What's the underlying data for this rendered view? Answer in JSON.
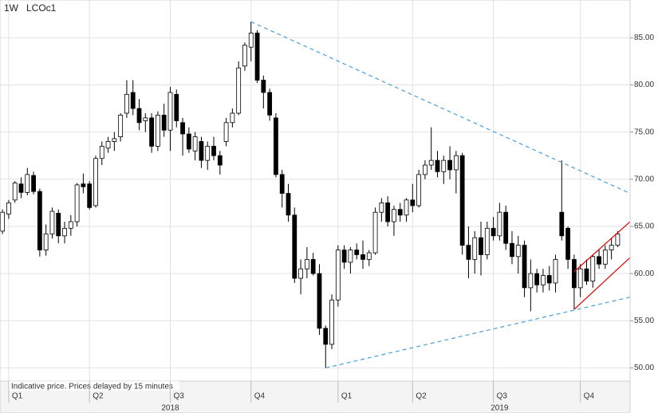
{
  "chart_data": {
    "type": "candlestick",
    "interval": "1W",
    "symbol": "LCOc1",
    "note": "Indicative price. Prices delayed by 15 minutes",
    "up_color": "#ffffff",
    "down_color": "#000000",
    "grid": true,
    "x": [
      0,
      1,
      2,
      3,
      4,
      5,
      6,
      7,
      8,
      9,
      10,
      11,
      12,
      13,
      14,
      15,
      16,
      17,
      18,
      19,
      20,
      21,
      22,
      23,
      24,
      25,
      26,
      27,
      28,
      29,
      30,
      31,
      32,
      33,
      34,
      35,
      36,
      37,
      38,
      39,
      40,
      41,
      42,
      43,
      44,
      45,
      46,
      47,
      48,
      49,
      50,
      51,
      52,
      53,
      54,
      55,
      56,
      57,
      58,
      59,
      60,
      61,
      62,
      63,
      64,
      65,
      66,
      67,
      68,
      69,
      70,
      71,
      72,
      73,
      74,
      75,
      76,
      77,
      78,
      79,
      80,
      81,
      82,
      83,
      84,
      85,
      86,
      87,
      88,
      89,
      90,
      91,
      92,
      93,
      94,
      95,
      96,
      97,
      98,
      99
    ],
    "open": [
      64.5,
      66.3,
      67.8,
      69.5,
      68.6,
      70.4,
      68.7,
      62.5,
      64.2,
      66.4,
      64.0,
      64.8,
      65.5,
      69.5,
      69.5,
      67.2,
      72.2,
      73.3,
      74.0,
      74.5,
      77.0,
      79.2,
      77.5,
      76.2,
      76.5,
      73.5,
      76.8,
      75.2,
      79.0,
      76.0,
      74.8,
      73.0,
      74.0,
      72.0,
      73.5,
      72.5,
      74.0,
      76.0,
      77.0,
      82.0,
      84.0,
      85.5,
      80.5,
      79.2,
      76.5,
      70.5,
      68.5,
      66.2,
      59.5,
      60.5,
      61.5,
      60.0,
      54.2,
      52.5,
      57.2,
      62.5,
      61.2,
      62.5,
      62.0,
      61.5,
      62.2,
      66.5,
      67.5,
      65.5,
      66.8,
      66.2,
      67.8,
      67.2,
      70.5,
      71.5,
      72.0,
      70.8,
      72.0,
      71.0,
      72.5,
      63.0,
      61.5,
      63.8,
      62.0,
      64.8,
      64.0,
      66.5,
      63.2,
      61.8,
      63.0,
      58.5,
      60.0,
      58.8,
      59.8,
      59.0,
      66.5,
      64.8,
      61.5,
      58.5,
      60.5,
      59.2,
      61.8,
      61.0,
      62.5,
      63.0
    ],
    "high": [
      66.8,
      67.8,
      69.8,
      70.2,
      71.2,
      70.8,
      69.0,
      65.2,
      67.0,
      66.8,
      65.5,
      66.2,
      69.6,
      70.6,
      69.8,
      72.5,
      74.0,
      74.5,
      75.0,
      77.0,
      80.5,
      80.5,
      78.5,
      77.0,
      77.0,
      77.2,
      78.0,
      79.8,
      79.5,
      76.5,
      75.5,
      75.0,
      74.5,
      74.0,
      74.5,
      73.0,
      76.5,
      77.5,
      82.5,
      84.5,
      86.7,
      85.8,
      81.0,
      79.6,
      77.0,
      71.0,
      69.5,
      67.0,
      61.5,
      62.8,
      62.2,
      61.0,
      54.5,
      57.8,
      63.0,
      63.0,
      62.8,
      63.2,
      63.5,
      62.5,
      67.0,
      68.0,
      68.2,
      67.2,
      67.5,
      68.0,
      69.5,
      71.0,
      72.0,
      75.5,
      73.0,
      72.5,
      73.5,
      73.0,
      72.8,
      65.0,
      64.5,
      65.5,
      65.5,
      66.0,
      67.5,
      67.2,
      64.5,
      64.0,
      63.5,
      61.5,
      60.5,
      60.5,
      60.8,
      62.0,
      72.0,
      65.0,
      62.0,
      61.0,
      61.5,
      62.0,
      62.5,
      63.0,
      63.8,
      64.5
    ],
    "low": [
      64.2,
      65.8,
      67.5,
      68.0,
      68.3,
      68.4,
      61.8,
      61.9,
      63.7,
      63.2,
      63.2,
      64.0,
      65.0,
      68.5,
      66.8,
      67.0,
      71.5,
      72.8,
      73.0,
      74.0,
      76.5,
      76.8,
      75.2,
      75.0,
      72.8,
      73.0,
      74.5,
      73.0,
      75.5,
      72.5,
      72.8,
      72.0,
      71.2,
      71.0,
      72.0,
      70.5,
      73.5,
      75.5,
      76.8,
      81.5,
      82.5,
      80.2,
      77.5,
      76.2,
      70.2,
      67.0,
      65.5,
      59.0,
      57.8,
      59.5,
      59.8,
      53.5,
      50.0,
      52.0,
      56.5,
      60.5,
      60.0,
      61.5,
      60.5,
      60.8,
      62.0,
      65.5,
      65.0,
      64.0,
      65.5,
      65.5,
      66.5,
      67.0,
      70.0,
      71.0,
      70.2,
      69.5,
      70.0,
      68.5,
      62.0,
      59.5,
      60.0,
      59.8,
      61.5,
      63.5,
      63.5,
      62.5,
      61.0,
      60.0,
      57.5,
      56.0,
      58.0,
      58.0,
      58.2,
      58.0,
      63.5,
      60.5,
      56.2,
      57.5,
      58.8,
      58.5,
      60.5,
      60.5,
      61.5,
      62.8
    ],
    "close": [
      66.5,
      67.5,
      69.6,
      68.6,
      70.5,
      68.7,
      62.5,
      64.2,
      66.6,
      64.0,
      64.8,
      65.5,
      69.4,
      69.2,
      67.0,
      72.2,
      73.5,
      74.0,
      74.3,
      76.8,
      79.0,
      77.5,
      76.0,
      76.5,
      73.5,
      76.8,
      75.2,
      79.2,
      76.2,
      74.8,
      73.2,
      74.5,
      72.0,
      73.5,
      72.5,
      71.5,
      76.0,
      77.0,
      81.8,
      84.2,
      85.5,
      80.5,
      79.2,
      76.8,
      70.5,
      68.5,
      66.2,
      59.5,
      60.5,
      61.5,
      60.0,
      54.2,
      52.5,
      57.2,
      62.5,
      61.2,
      62.5,
      62.0,
      61.5,
      62.2,
      66.5,
      67.5,
      65.5,
      66.8,
      66.2,
      67.8,
      67.2,
      70.5,
      71.5,
      72.0,
      70.8,
      72.0,
      71.0,
      72.5,
      63.0,
      61.5,
      63.8,
      62.0,
      64.8,
      64.0,
      66.5,
      63.2,
      61.8,
      63.0,
      58.5,
      60.0,
      58.8,
      59.8,
      59.0,
      61.5,
      64.0,
      61.5,
      58.5,
      60.5,
      59.2,
      61.8,
      61.0,
      62.5,
      63.0,
      64.2
    ],
    "xlim": [
      -0.4,
      101
    ],
    "ylim": [
      48.6,
      89
    ],
    "yticks": [
      {
        "value": 50,
        "label": "50.00"
      },
      {
        "value": 55,
        "label": "55.00"
      },
      {
        "value": 60,
        "label": "60.00"
      },
      {
        "value": 65,
        "label": "65.00"
      },
      {
        "value": 70,
        "label": "70.00"
      },
      {
        "value": 75,
        "label": "75.00"
      },
      {
        "value": 80,
        "label": "80.00"
      },
      {
        "value": 85,
        "label": "85.00"
      }
    ],
    "xticks": [
      {
        "value": 1,
        "label": "Q1"
      },
      {
        "value": 14,
        "label": "Q2"
      },
      {
        "value": 27,
        "label": "Q3"
      },
      {
        "value": 40,
        "label": "Q4"
      },
      {
        "value": 54,
        "label": "Q1"
      },
      {
        "value": 66,
        "label": "Q2"
      },
      {
        "value": 79,
        "label": "Q3"
      },
      {
        "value": 93,
        "label": "Q4"
      }
    ],
    "year_labels": [
      {
        "value": 27,
        "label": "2018"
      },
      {
        "value": 80,
        "label": "2019"
      }
    ],
    "lines": [
      {
        "color": "#4a9fd8",
        "dash": true,
        "points": [
          [
            40,
            86.7
          ],
          [
            101,
            68.5
          ]
        ]
      },
      {
        "color": "#4a9fd8",
        "dash": true,
        "points": [
          [
            52,
            50.0
          ],
          [
            101,
            57.5
          ]
        ]
      },
      {
        "color": "#e00000",
        "dash": false,
        "points": [
          [
            92,
            60.2
          ],
          [
            101,
            65.5
          ]
        ]
      },
      {
        "color": "#e00000",
        "dash": false,
        "points": [
          [
            92,
            56.2
          ],
          [
            101,
            61.7
          ]
        ]
      }
    ]
  }
}
